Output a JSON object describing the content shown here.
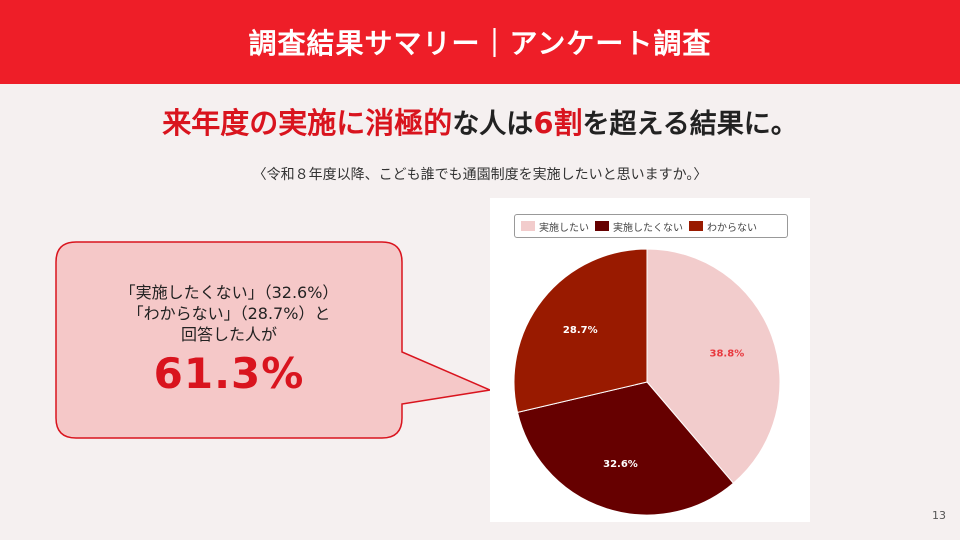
{
  "header": {
    "title": "調査結果サマリー｜アンケート調査"
  },
  "headline": {
    "part1": "来年度の実施に消極的",
    "part2": "な人は",
    "part3": "6割",
    "part4": "を超える結果に。"
  },
  "subtitle": "〈令和８年度以降、こども誰でも通園制度を実施したいと思いますか。〉",
  "callout": {
    "line1": "「実施したくない」（32.6%）",
    "line2": "「わからない」（28.7%）と",
    "line3": "回答した人が",
    "big_value": "61.3%"
  },
  "chart_data": {
    "type": "pie",
    "legend_position": "top",
    "slices": [
      {
        "label": "実施したい",
        "value": 38.8,
        "display": "38.8%",
        "color": "#f2cccc",
        "label_color": "#e8393f"
      },
      {
        "label": "実施したくない",
        "value": 32.6,
        "display": "32.6%",
        "color": "#660000",
        "label_color": "#ffffff"
      },
      {
        "label": "わからない",
        "value": 28.7,
        "display": "28.7%",
        "color": "#991a00",
        "label_color": "#ffffff"
      }
    ]
  },
  "colors": {
    "accent": "#ee1e28",
    "highlight": "#d9141e",
    "callout_fill": "#f5c8c8",
    "callout_border": "#d9141e"
  },
  "page_number": "13"
}
